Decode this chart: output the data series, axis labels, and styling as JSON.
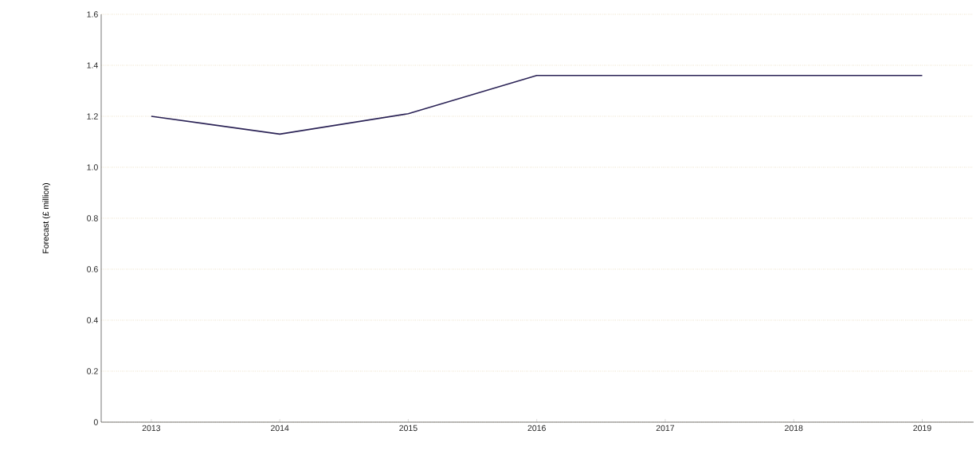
{
  "chart_data": {
    "type": "line",
    "ylabel": "Forecast (£ million)",
    "categories": [
      "2013",
      "2014",
      "2015",
      "2016",
      "2017",
      "2018",
      "2019"
    ],
    "series": [
      {
        "color": "#2b2356",
        "values": [
          1.2,
          1.13,
          1.21,
          1.36,
          1.36,
          1.36,
          1.36
        ]
      }
    ],
    "ylim": [
      0,
      1.6
    ],
    "yticks": [
      0,
      0.2,
      0.4,
      0.6,
      0.8,
      {
        "value": 1,
        "label": "1.0"
      },
      1.2,
      1.4,
      1.6
    ],
    "grid": "y",
    "legend": false,
    "marker": "none",
    "line_style": "solid"
  }
}
